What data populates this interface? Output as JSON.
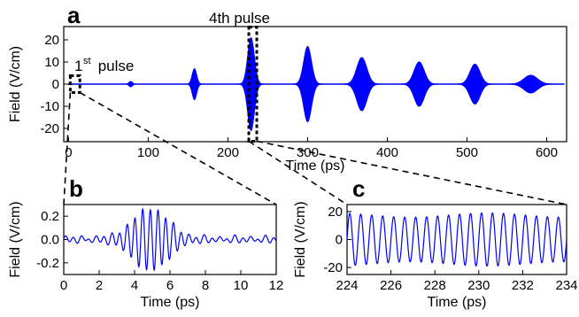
{
  "figure": {
    "panel_a": "a",
    "panel_b": "b",
    "panel_c": "c",
    "annotation_first": "1",
    "annotation_first_sup": "st",
    "annotation_first_word": " pulse",
    "annotation_fourth": "4th pulse"
  },
  "colors": {
    "signal": "#0000ff",
    "axis": "#000000",
    "box": "#000000"
  },
  "chart_data": [
    {
      "id": "a",
      "type": "line",
      "xlabel": "Time (ps)",
      "ylabel": "Field (V/cm)",
      "xlim": [
        -6,
        625
      ],
      "ylim": [
        -26,
        26
      ],
      "xticks": [
        0,
        100,
        200,
        300,
        400,
        500,
        600
      ],
      "yticks": [
        -20,
        -10,
        0,
        10,
        20
      ],
      "grid": false,
      "envelope_pulses": [
        {
          "center": 0,
          "amplitude": 0.25,
          "width": 4
        },
        {
          "center": 78,
          "amplitude": 1.2,
          "width": 3
        },
        {
          "center": 158,
          "amplitude": 7,
          "width": 4
        },
        {
          "center": 229,
          "amplitude": 21,
          "width": 6
        },
        {
          "center": 300,
          "amplitude": 17,
          "width": 7
        },
        {
          "center": 368,
          "amplitude": 12,
          "width": 9
        },
        {
          "center": 440,
          "amplitude": 10,
          "width": 9
        },
        {
          "center": 510,
          "amplitude": 9,
          "width": 9
        },
        {
          "center": 580,
          "amplitude": 4,
          "width": 12
        }
      ],
      "highlight_boxes": [
        {
          "label": "1st pulse",
          "x_range": [
            0,
            12
          ],
          "y_range": [
            -3,
            3
          ]
        },
        {
          "label": "4th pulse",
          "x_range": [
            224,
            234
          ],
          "y_range": [
            -25,
            25
          ]
        }
      ]
    },
    {
      "id": "b",
      "type": "line",
      "xlabel": "Time (ps)",
      "ylabel": "Field (V/cm)",
      "xlim": [
        0,
        12
      ],
      "ylim": [
        -0.3,
        0.3
      ],
      "xticks": [
        0,
        2,
        4,
        6,
        8,
        10,
        12
      ],
      "yticks": [
        -0.2,
        0.0,
        0.2
      ],
      "ytick_labels": [
        "-0.2",
        "0.0",
        "0.2"
      ],
      "grid": false,
      "signal": {
        "frequency_thz": 2.3,
        "peak_time": 4.9,
        "peak_amplitude": 0.25,
        "background_amplitude": 0.02
      }
    },
    {
      "id": "c",
      "type": "line",
      "xlabel": "Time (ps)",
      "ylabel": "Field (V/cm)",
      "xlim": [
        224,
        234
      ],
      "ylim": [
        -25,
        25
      ],
      "xticks": [
        224,
        226,
        228,
        230,
        232,
        234
      ],
      "yticks": [
        -20,
        0,
        20
      ],
      "grid": false,
      "signal": {
        "frequency_thz": 2.0,
        "amplitude": 19
      }
    }
  ]
}
